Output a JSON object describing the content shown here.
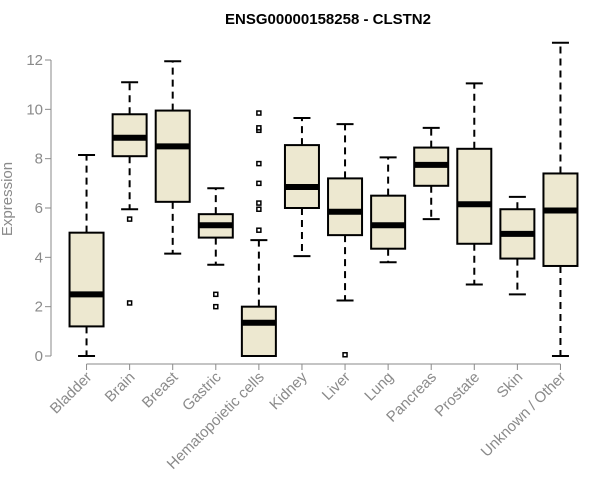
{
  "chart_data": {
    "type": "boxplot",
    "title": "ENSG00000158258 - CLSTN2",
    "xlabel": "",
    "ylabel": "Expression",
    "ylim": [
      0,
      12.5
    ],
    "yticks": [
      0,
      2,
      4,
      6,
      8,
      10,
      12
    ],
    "grid": false,
    "box_fill": "#ede8d0",
    "categories": [
      "Bladder",
      "Brain",
      "Breast",
      "Gastric",
      "Hematopoietic cells",
      "Kidney",
      "Liver",
      "Lung",
      "Pancreas",
      "Prostate",
      "Skin",
      "Unknown / Other"
    ],
    "boxes": [
      {
        "min": 0.0,
        "q1": 1.2,
        "median": 2.5,
        "q3": 5.0,
        "max": 8.15,
        "outliers": []
      },
      {
        "min": 5.95,
        "q1": 8.1,
        "median": 8.85,
        "q3": 9.8,
        "max": 11.1,
        "outliers": [
          5.55,
          2.15
        ]
      },
      {
        "min": 4.15,
        "q1": 6.25,
        "median": 8.5,
        "q3": 9.95,
        "max": 11.95,
        "outliers": []
      },
      {
        "min": 3.7,
        "q1": 4.8,
        "median": 5.3,
        "q3": 5.75,
        "max": 6.8,
        "outliers": [
          2.5,
          2.0
        ]
      },
      {
        "min": 0.0,
        "q1": 0.0,
        "median": 1.35,
        "q3": 2.0,
        "max": 4.7,
        "outliers": [
          5.1,
          5.95,
          6.2,
          7.0,
          7.8,
          9.15,
          9.25,
          9.85
        ]
      },
      {
        "min": 4.05,
        "q1": 6.0,
        "median": 6.85,
        "q3": 8.55,
        "max": 9.65,
        "outliers": []
      },
      {
        "min": 2.25,
        "q1": 4.9,
        "median": 5.85,
        "q3": 7.2,
        "max": 9.4,
        "outliers": [
          0.05
        ]
      },
      {
        "min": 3.8,
        "q1": 4.35,
        "median": 5.3,
        "q3": 6.5,
        "max": 8.05,
        "outliers": []
      },
      {
        "min": 5.55,
        "q1": 6.9,
        "median": 7.75,
        "q3": 8.45,
        "max": 9.25,
        "outliers": []
      },
      {
        "min": 2.9,
        "q1": 4.55,
        "median": 6.15,
        "q3": 8.4,
        "max": 11.05,
        "outliers": []
      },
      {
        "min": 2.5,
        "q1": 3.95,
        "median": 4.95,
        "q3": 5.95,
        "max": 6.45,
        "outliers": []
      },
      {
        "min": 0.0,
        "q1": 3.65,
        "median": 5.9,
        "q3": 7.4,
        "max": 12.7,
        "outliers": []
      }
    ]
  }
}
